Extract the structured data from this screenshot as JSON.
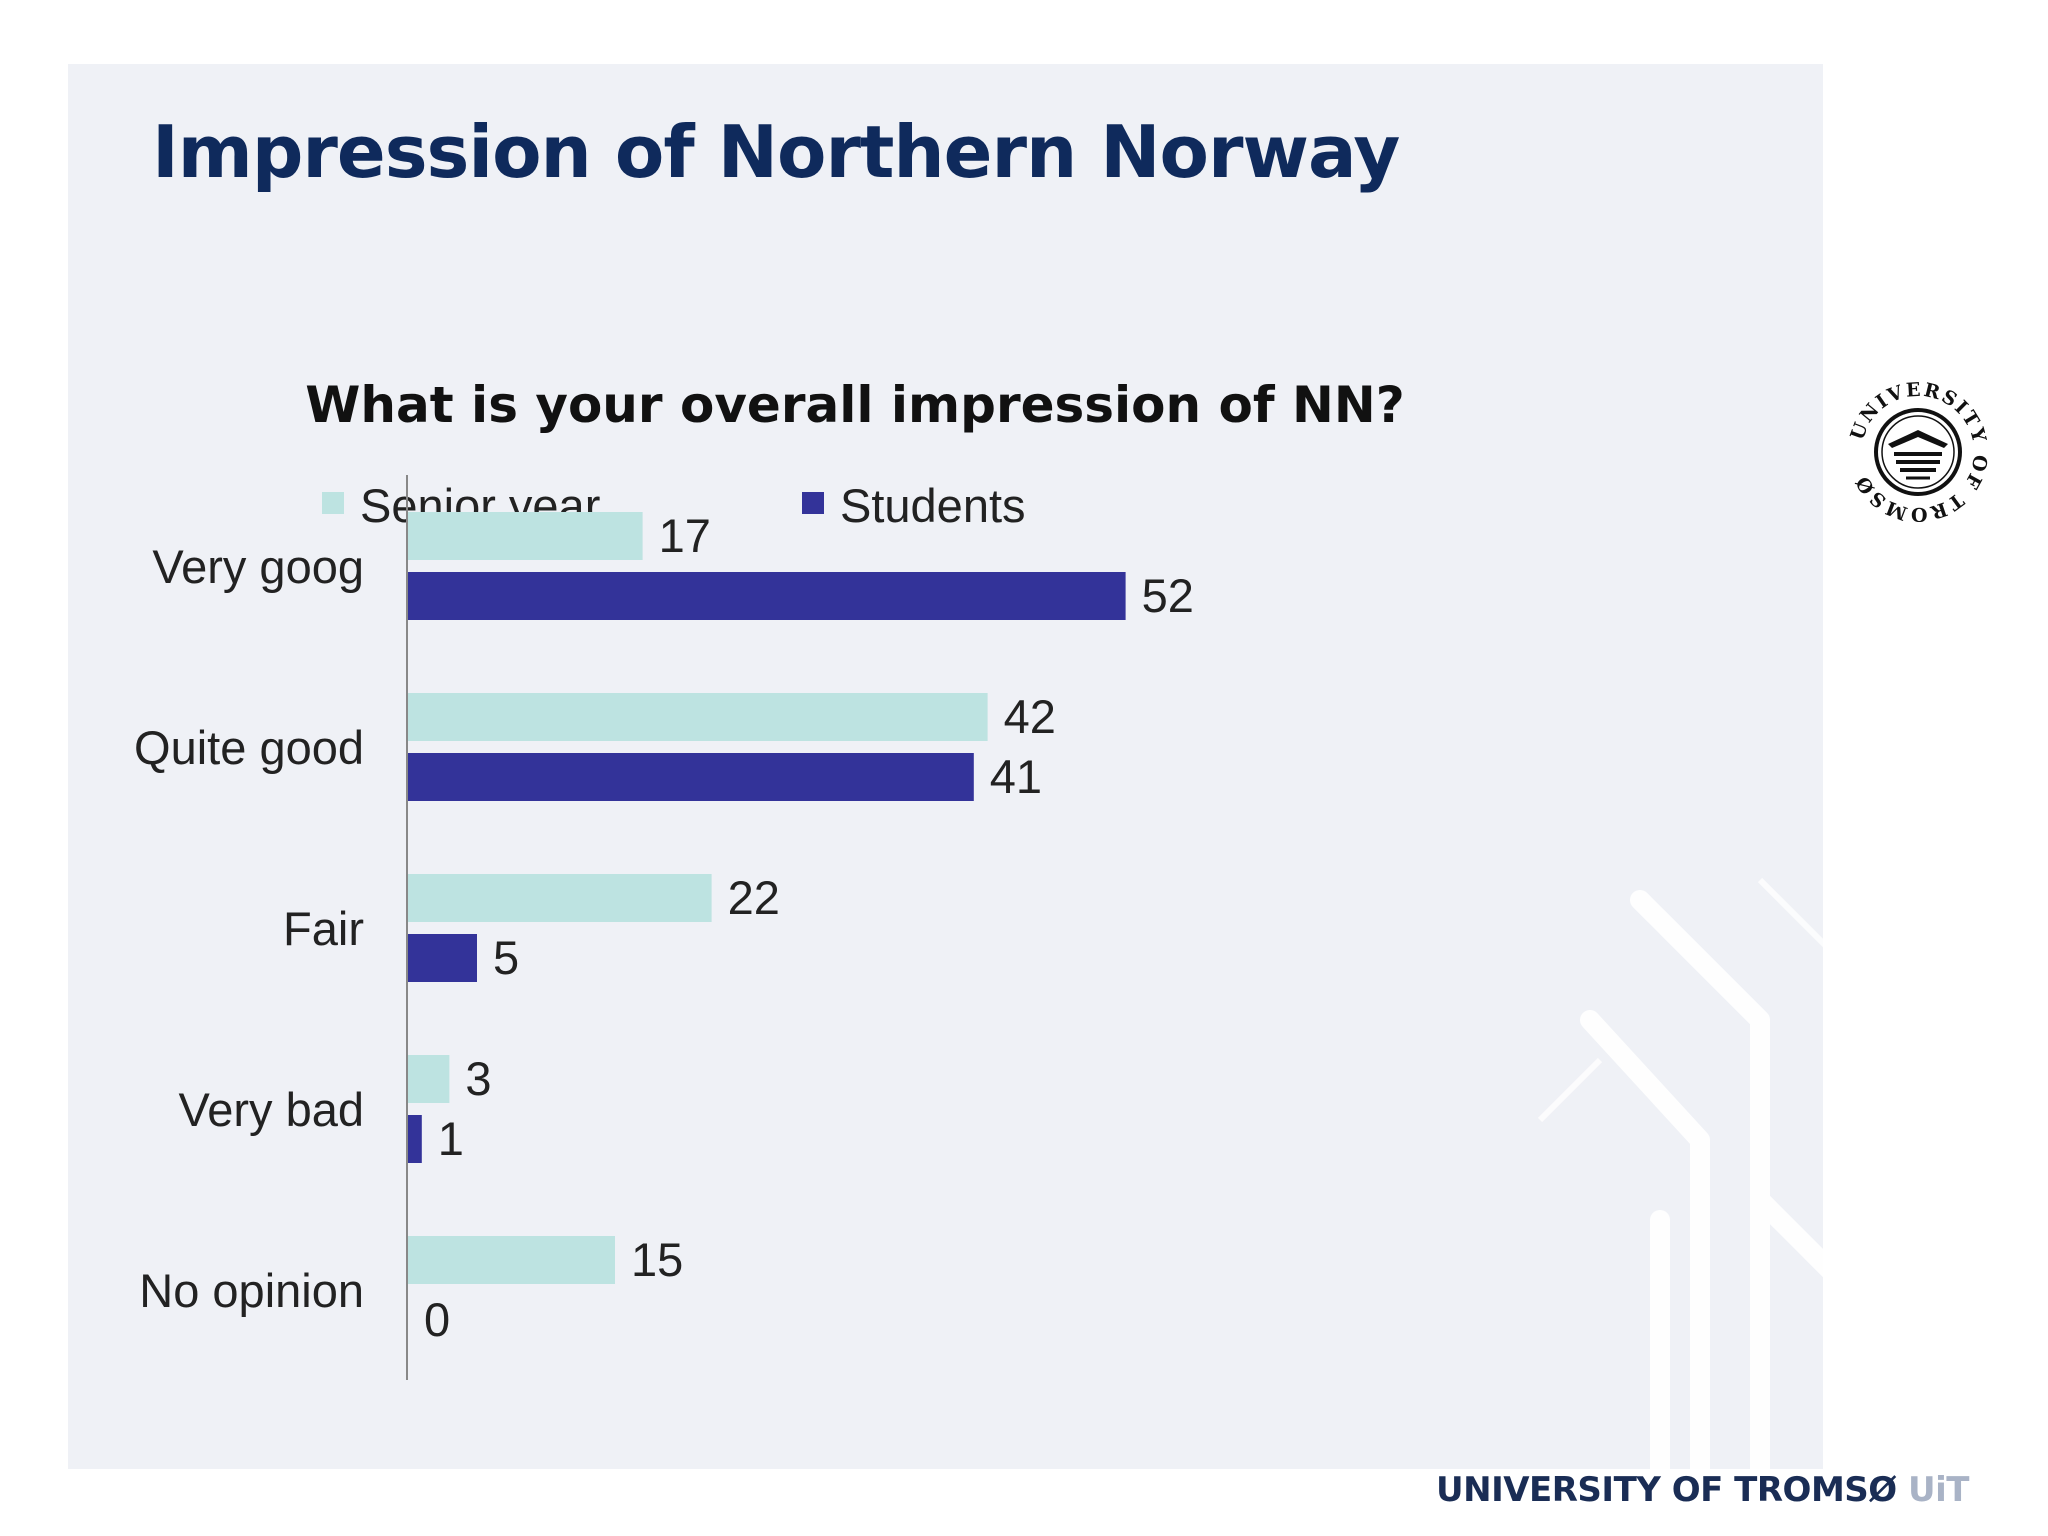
{
  "slide": {
    "title": "Impression of Northern Norway",
    "footer_name": "UNIVERSITY OF TROMSØ",
    "footer_short": "UiT",
    "seal_text": "UNIVERSITY OF TROMSØ"
  },
  "colors": {
    "senior_year": "#bde3e1",
    "students": "#333399",
    "title": "#0f2a5c",
    "panel": "#eff1f6"
  },
  "chart_data": {
    "type": "bar",
    "orientation": "horizontal",
    "title": "What is your overall impression of NN?",
    "categories": [
      "Very goog",
      "Quite good",
      "Fair",
      "Very bad",
      "No opinion"
    ],
    "series": [
      {
        "name": "Senior year",
        "values": [
          17,
          42,
          22,
          3,
          15
        ]
      },
      {
        "name": "Students",
        "values": [
          52,
          41,
          5,
          1,
          0
        ]
      }
    ],
    "xlim": [
      0,
      60
    ],
    "legend": "top",
    "grid": false,
    "data_labels": true
  }
}
